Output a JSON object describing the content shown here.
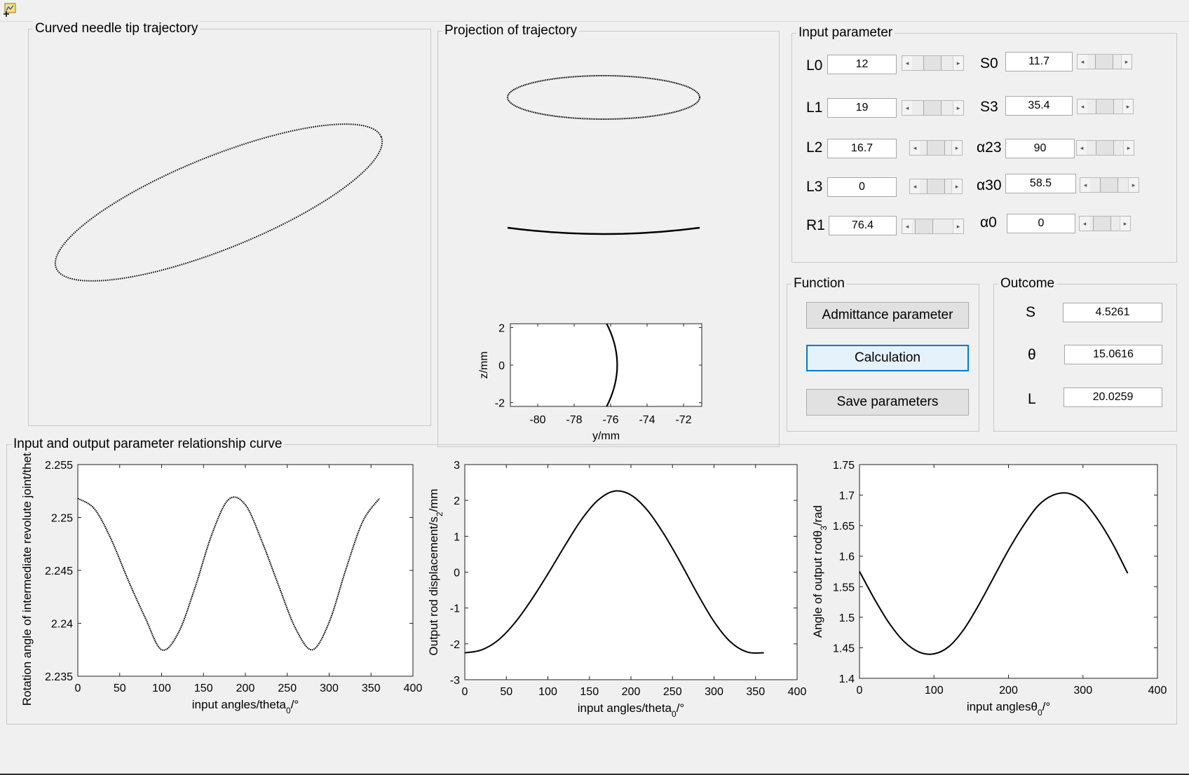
{
  "window": {
    "icon": "matlab-figure-icon"
  },
  "trajectory_panel": {
    "title": "Curved needle tip trajectory"
  },
  "projection_panel": {
    "title": "Projection of trajectory",
    "plot": {
      "ylabel": "z/mm",
      "xlabel": "y/mm",
      "xlim": [
        -81.5,
        -71
      ],
      "ylim": [
        -2.2,
        2.2
      ],
      "xticks": [
        -80,
        -78,
        -76,
        -74,
        -72
      ],
      "yticks": [
        2,
        0,
        -2
      ],
      "xtick_labels": [
        "-80",
        "-78",
        "-76",
        "-74",
        "-72"
      ],
      "ytick_labels": [
        "2",
        "0",
        "-2"
      ]
    }
  },
  "input_panel": {
    "title": "Input parameter",
    "params": [
      {
        "label": "L0",
        "value": "12",
        "slider": 0.45
      },
      {
        "label": "L1",
        "value": "19",
        "slider": 0.45
      },
      {
        "label": "L2",
        "value": "16.7",
        "slider": 0.45
      },
      {
        "label": "L3",
        "value": "0",
        "slider": 0.45
      },
      {
        "label": "R1",
        "value": "76.4",
        "slider": 0.12
      },
      {
        "label": "S0",
        "value": "11.7",
        "slider": 0.45
      },
      {
        "label": "S3",
        "value": "35.4",
        "slider": 0.45
      },
      {
        "label": "α23",
        "value": "90",
        "slider": 0.45
      },
      {
        "label": "α30",
        "value": "58.5",
        "slider": 0.45
      },
      {
        "label": "α0",
        "value": "0",
        "slider": 0.25
      }
    ]
  },
  "function_panel": {
    "title": "Function",
    "admittance_label": "Admittance parameter",
    "calculation_label": "Calculation",
    "save_label": "Save parameters"
  },
  "outcome_panel": {
    "title": "Outcome",
    "items": [
      {
        "label": "S",
        "value": "4.5261"
      },
      {
        "label": "θ",
        "value": "15.0616"
      },
      {
        "label": "L",
        "value": "20.0259"
      }
    ]
  },
  "relation_panel": {
    "title": "Input and output parameter relationship curve"
  },
  "chart_data": [
    {
      "type": "line",
      "title": "",
      "xlabel": "input angles/theta",
      "xlabel_sub": "0",
      "xlabel_suffix": "/°",
      "ylabel": "Rotation angle of intermediate revolute joint/theta",
      "xlim": [
        0,
        400
      ],
      "ylim": [
        2.235,
        2.255
      ],
      "xticks": [
        0,
        50,
        100,
        150,
        200,
        250,
        300,
        350,
        400
      ],
      "yticks": [
        2.235,
        2.24,
        2.245,
        2.25,
        2.255
      ],
      "xtick_labels": [
        "0",
        "50",
        "100",
        "150",
        "200",
        "250",
        "300",
        "350",
        "400"
      ],
      "ytick_labels": [
        "2.235",
        "2.24",
        "2.245",
        "2.25",
        "2.255"
      ],
      "series": [
        {
          "x": [
            0,
            20,
            40,
            60,
            80,
            100,
            120,
            140,
            160,
            180,
            200,
            220,
            240,
            260,
            280,
            300,
            320,
            340,
            360
          ],
          "y": [
            2.2518,
            2.2508,
            2.2479,
            2.2441,
            2.2406,
            2.2375,
            2.2391,
            2.2434,
            2.2484,
            2.2517,
            2.2512,
            2.2477,
            2.2435,
            2.2395,
            2.2375,
            2.2401,
            2.2451,
            2.2496,
            2.2518
          ]
        }
      ]
    },
    {
      "type": "line",
      "title": "",
      "xlabel": "input angles/theta",
      "xlabel_sub": "0",
      "xlabel_suffix": "/°",
      "ylabel": "Output rod displacement/s",
      "ylabel_sub": "2",
      "ylabel_suffix": "/mm",
      "xlim": [
        0,
        400
      ],
      "ylim": [
        -3,
        3
      ],
      "xticks": [
        0,
        50,
        100,
        150,
        200,
        250,
        300,
        350,
        400
      ],
      "yticks": [
        -3,
        -2,
        -1,
        0,
        1,
        2,
        3
      ],
      "xtick_labels": [
        "0",
        "50",
        "100",
        "150",
        "200",
        "250",
        "300",
        "350",
        "400"
      ],
      "ytick_labels": [
        "-3",
        "-2",
        "-1",
        "0",
        "1",
        "2",
        "3"
      ],
      "series": [
        {
          "x": [
            0,
            20,
            40,
            60,
            80,
            100,
            120,
            140,
            160,
            180,
            200,
            220,
            240,
            260,
            280,
            300,
            320,
            340,
            360
          ],
          "y": [
            -2.25,
            -2.17,
            -1.9,
            -1.42,
            -0.78,
            -0.05,
            0.72,
            1.45,
            2.0,
            2.26,
            2.15,
            1.72,
            1.05,
            0.25,
            -0.6,
            -1.38,
            -1.95,
            -2.23,
            -2.25
          ]
        }
      ]
    },
    {
      "type": "line",
      "title": "",
      "xlabel": "input angles",
      "xlabel_greek": "θ",
      "xlabel_sub": "0",
      "xlabel_suffix": "/°",
      "ylabel": "Angle of output rod",
      "ylabel_greek": "θ",
      "ylabel_sub": "3",
      "ylabel_suffix": "/rad",
      "xlim": [
        0,
        400
      ],
      "ylim": [
        1.4,
        1.75
      ],
      "xticks": [
        0,
        100,
        200,
        300,
        400
      ],
      "yticks": [
        1.4,
        1.45,
        1.5,
        1.55,
        1.6,
        1.65,
        1.7,
        1.75
      ],
      "xtick_labels": [
        "0",
        "100",
        "200",
        "300",
        "400"
      ],
      "ytick_labels": [
        "1.4",
        "1.45",
        "1.5",
        "1.55",
        "1.6",
        "1.65",
        "1.7",
        "1.75"
      ],
      "series": [
        {
          "x": [
            0,
            20,
            40,
            60,
            80,
            100,
            120,
            140,
            160,
            180,
            200,
            220,
            240,
            260,
            280,
            300,
            320,
            340,
            360
          ],
          "y": [
            1.575,
            1.53,
            1.49,
            1.46,
            1.443,
            1.44,
            1.452,
            1.48,
            1.52,
            1.565,
            1.61,
            1.65,
            1.683,
            1.7,
            1.703,
            1.69,
            1.66,
            1.62,
            1.572
          ]
        }
      ]
    }
  ]
}
